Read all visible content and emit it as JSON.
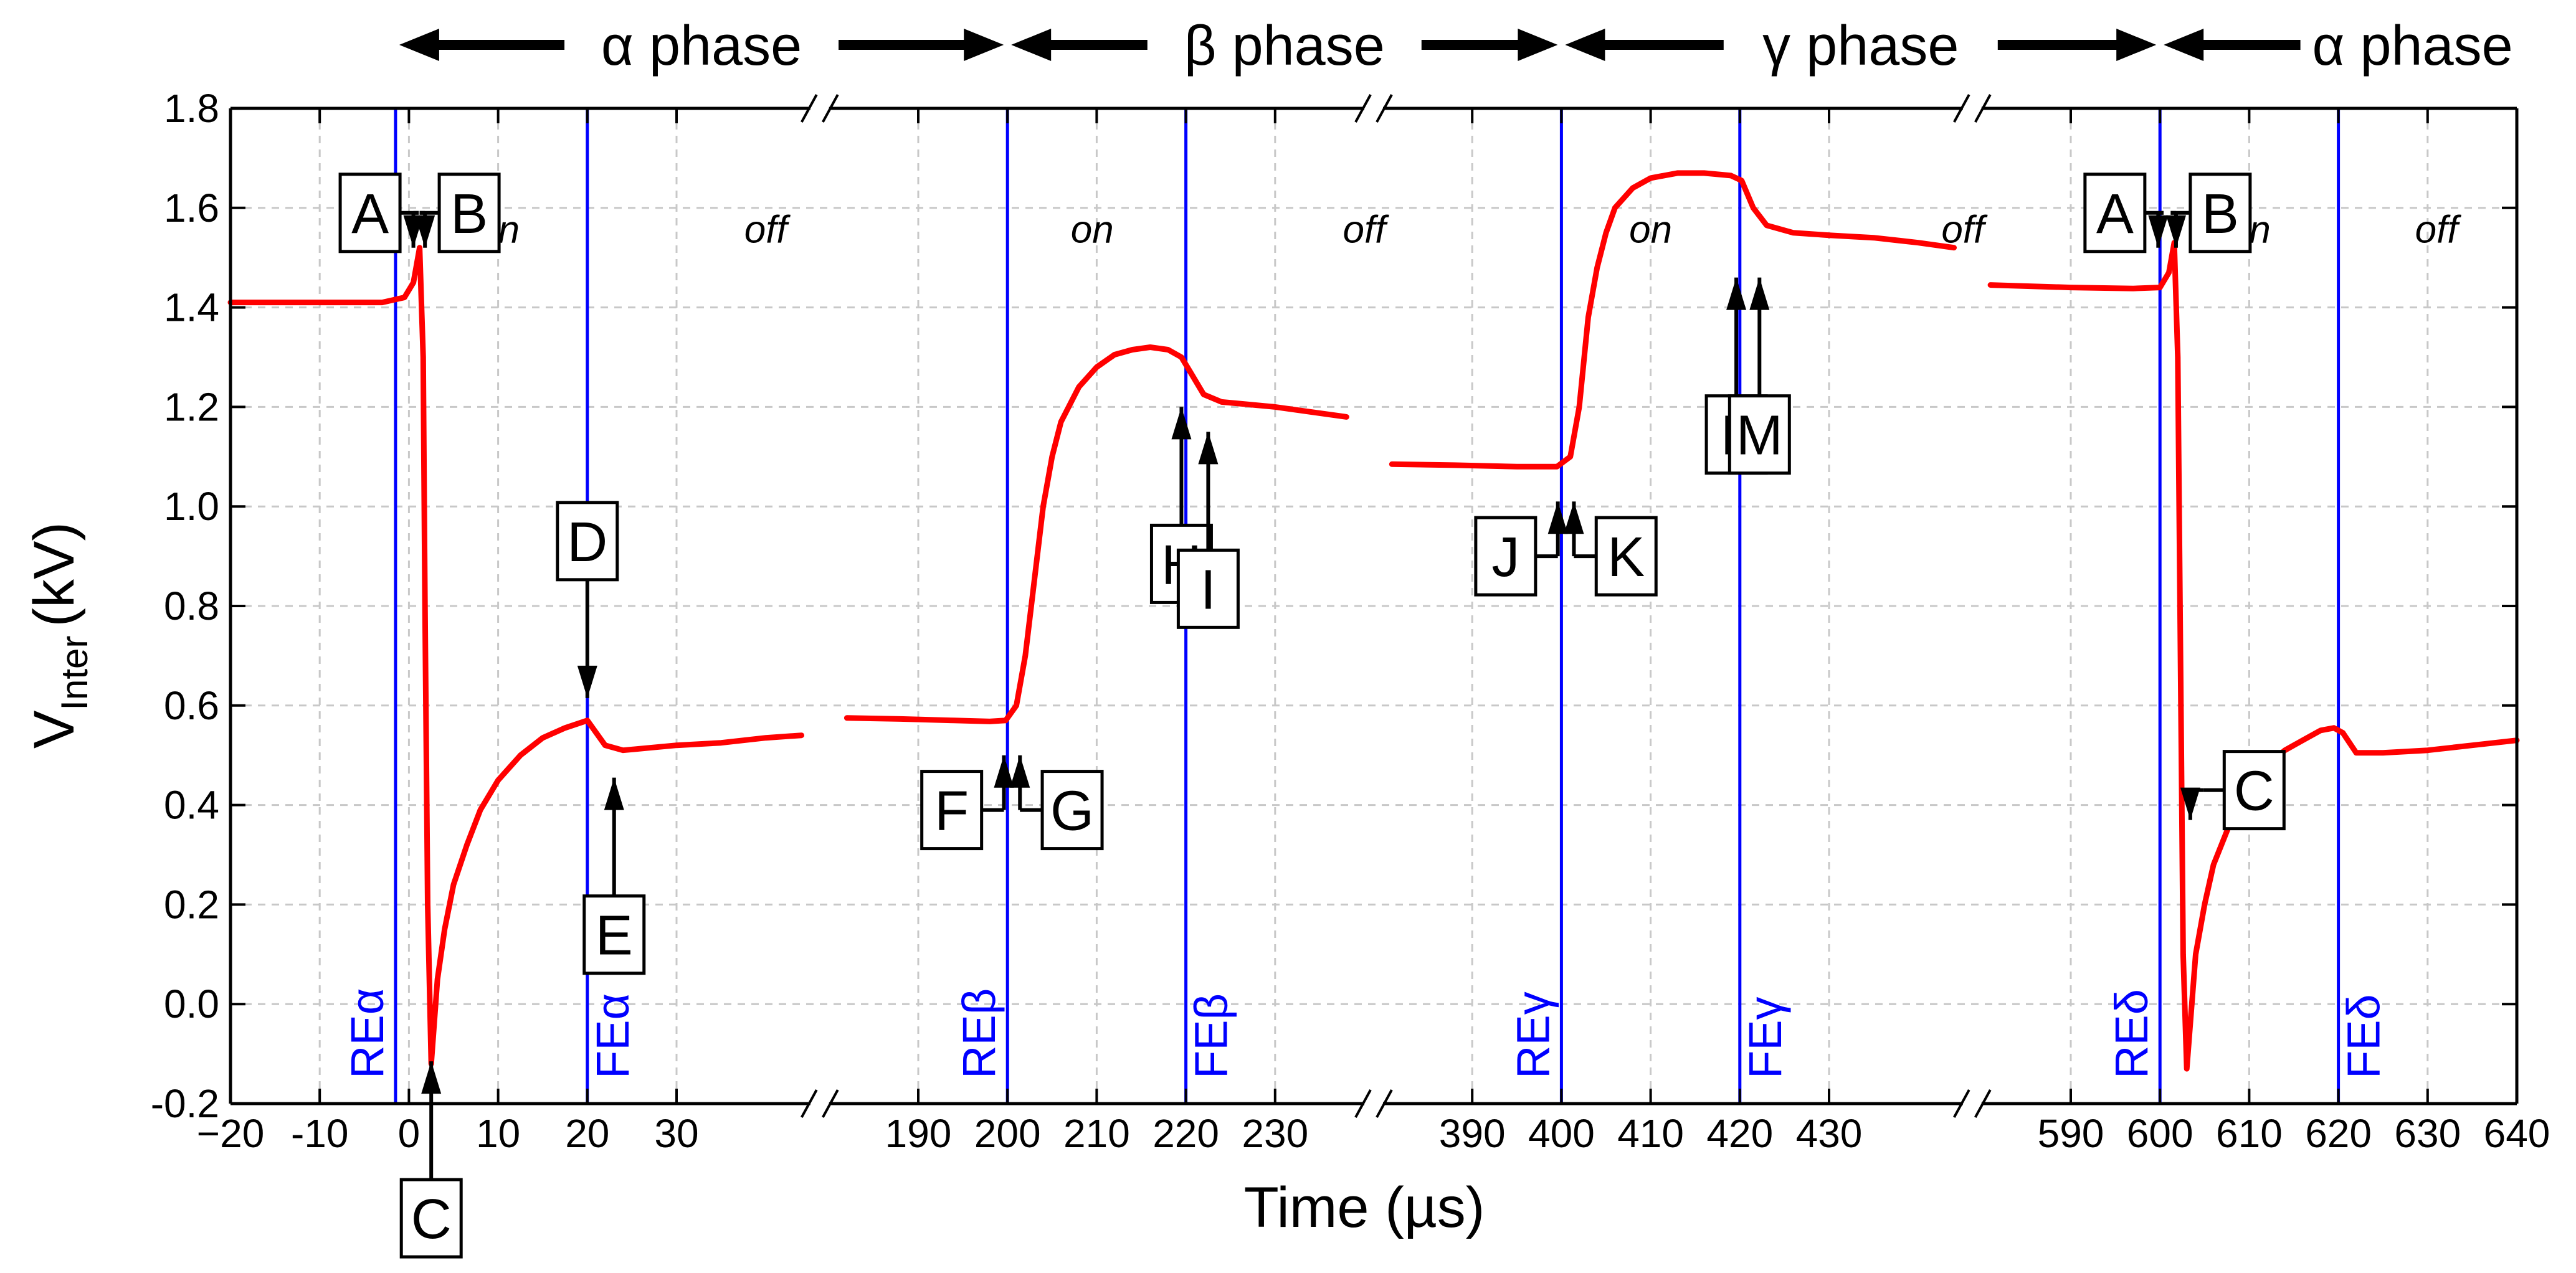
{
  "chart_data": {
    "type": "line",
    "title": "",
    "ylabel": {
      "main": "V",
      "sub": "Inter",
      "unit": "(kV)"
    },
    "xlabel": "Time (µs)",
    "ylim": [
      -0.2,
      1.8
    ],
    "y_ticks": [
      "1.8",
      "1.6",
      "1.4",
      "1.2",
      "1.0",
      "0.8",
      "0.6",
      "0.4",
      "0.2",
      "0.0",
      "-0.2"
    ],
    "y_tick_values": [
      1.8,
      1.6,
      1.4,
      1.2,
      1.0,
      0.8,
      0.6,
      0.4,
      0.2,
      0.0,
      -0.2
    ],
    "segments": [
      {
        "xlim": [
          -20,
          45
        ],
        "ticks": [
          -20,
          -10,
          0,
          10,
          20,
          30
        ],
        "tick_labels": [
          "−20",
          "-10",
          "0",
          "10",
          "20",
          "30"
        ]
      },
      {
        "xlim": [
          180,
          240
        ],
        "ticks": [
          190,
          200,
          210,
          220,
          230
        ],
        "tick_labels": [
          "190",
          "200",
          "210",
          "220",
          "230"
        ]
      },
      {
        "xlim": [
          380,
          445
        ],
        "ticks": [
          390,
          400,
          410,
          420,
          430
        ],
        "tick_labels": [
          "390",
          "400",
          "410",
          "420",
          "430"
        ]
      },
      {
        "xlim": [
          580,
          640
        ],
        "ticks": [
          590,
          600,
          610,
          620,
          630,
          640
        ],
        "tick_labels": [
          "590",
          "600",
          "610",
          "620",
          "630",
          "640"
        ]
      }
    ],
    "phases": [
      {
        "label": "α phase",
        "from": -1.5,
        "to": 200
      },
      {
        "label": "β phase",
        "from": 200,
        "to": 400
      },
      {
        "label": "γ phase",
        "from": 400,
        "to": 600
      },
      {
        "label": "α phase",
        "from": 600,
        "to": 640
      }
    ],
    "states": [
      {
        "label": "on",
        "x": 10
      },
      {
        "label": "off",
        "x": 40
      },
      {
        "label": "on",
        "x": 209.5
      },
      {
        "label": "off",
        "x": 240
      },
      {
        "label": "on",
        "x": 410
      },
      {
        "label": "off",
        "x": 445
      },
      {
        "label": "on",
        "x": 610
      },
      {
        "label": "off",
        "x": 631
      }
    ],
    "edges": [
      {
        "label": "REα",
        "x": -1.5,
        "side": "left"
      },
      {
        "label": "FEα",
        "x": 20,
        "side": "right"
      },
      {
        "label": "REβ",
        "x": 200,
        "side": "left"
      },
      {
        "label": "FEβ",
        "x": 220,
        "side": "right"
      },
      {
        "label": "REγ",
        "x": 400,
        "side": "left"
      },
      {
        "label": "FEγ",
        "x": 420,
        "side": "right"
      },
      {
        "label": "REδ",
        "x": 600,
        "side": "left"
      },
      {
        "label": "FEδ",
        "x": 620,
        "side": "right"
      }
    ],
    "series": [
      {
        "name": "V_Inter",
        "color": "#ff0000",
        "segments": [
          {
            "x": [
              -20,
              -3,
              -0.5,
              0.5,
              1.2,
              1.6,
              1.8,
              2.1,
              2.5,
              3.2,
              4,
              5,
              6.5,
              8,
              10,
              12.5,
              15,
              17.5,
              20,
              21,
              22,
              24,
              27,
              30,
              35,
              40,
              44
            ],
            "y": [
              1.41,
              1.41,
              1.42,
              1.45,
              1.52,
              1.3,
              0.8,
              0.2,
              -0.12,
              0.05,
              0.15,
              0.24,
              0.32,
              0.39,
              0.45,
              0.5,
              0.535,
              0.555,
              0.57,
              0.545,
              0.52,
              0.51,
              0.515,
              0.52,
              0.525,
              0.535,
              0.54
            ]
          },
          {
            "x": [
              182,
              188,
              194,
              198,
              199.8,
              201,
              202,
              203,
              204,
              205,
              206,
              208,
              210,
              212,
              214,
              216,
              218,
              219.5,
              220.5,
              222,
              224,
              227,
              230,
              234,
              238
            ],
            "y": [
              0.575,
              0.573,
              0.57,
              0.568,
              0.57,
              0.6,
              0.7,
              0.85,
              1.0,
              1.1,
              1.17,
              1.24,
              1.28,
              1.305,
              1.315,
              1.32,
              1.315,
              1.3,
              1.27,
              1.225,
              1.21,
              1.205,
              1.2,
              1.19,
              1.18
            ]
          },
          {
            "x": [
              381,
              388,
              395,
              399.5,
              401,
              402,
              403,
              404,
              405,
              406,
              408,
              410,
              413,
              416,
              419,
              420.2,
              421.5,
              423,
              426,
              430,
              435,
              440,
              444
            ],
            "y": [
              1.085,
              1.083,
              1.08,
              1.08,
              1.1,
              1.2,
              1.38,
              1.48,
              1.55,
              1.6,
              1.64,
              1.66,
              1.67,
              1.67,
              1.665,
              1.655,
              1.6,
              1.565,
              1.55,
              1.545,
              1.54,
              1.53,
              1.52
            ]
          },
          {
            "x": [
              581,
              590,
              597,
              600,
              601,
              601.6,
              602,
              602.3,
              602.6,
              603,
              604,
              605,
              606,
              608,
              610,
              612,
              614,
              616,
              618,
              619.5,
              620.5,
              622,
              625,
              630,
              635,
              640
            ],
            "y": [
              1.445,
              1.44,
              1.438,
              1.44,
              1.47,
              1.53,
              1.3,
              0.7,
              0.1,
              -0.13,
              0.1,
              0.2,
              0.28,
              0.37,
              0.44,
              0.48,
              0.51,
              0.53,
              0.55,
              0.555,
              0.545,
              0.505,
              0.505,
              0.51,
              0.52,
              0.53
            ]
          }
        ]
      }
    ],
    "markers": [
      {
        "label": "A",
        "x": 0.5,
        "y": 1.52,
        "kind": "elbow-down",
        "dx": 0.6,
        "box_dx": -1.5,
        "box_dy": -0.07
      },
      {
        "label": "B",
        "x": 1.8,
        "y": 1.52,
        "kind": "elbow-down",
        "dx": -0.6,
        "box_dx": 1.6,
        "box_dy": -0.07
      },
      {
        "label": "C",
        "x": 2.5,
        "y": -0.115,
        "kind": "up-box-below"
      },
      {
        "label": "D",
        "x": 20,
        "y": 0.615,
        "kind": "down-box-above"
      },
      {
        "label": "E",
        "x": 23,
        "y": 0.455,
        "kind": "up-box-below"
      },
      {
        "label": "F",
        "x": 199.6,
        "y": 0.5,
        "kind": "elbow-up",
        "dx": -0.6,
        "box_dx": -2.5,
        "box_dy": 0.04
      },
      {
        "label": "G",
        "x": 201.4,
        "y": 0.5,
        "kind": "elbow-up",
        "dx": 0.6,
        "box_dx": 2.5,
        "box_dy": 0.04
      },
      {
        "label": "H",
        "x": 219.5,
        "y": 1.2,
        "kind": "up-box-below"
      },
      {
        "label": "I",
        "x": 222.5,
        "y": 1.15,
        "kind": "up-box-below"
      },
      {
        "label": "J",
        "x": 399.6,
        "y": 1.01,
        "kind": "elbow-up",
        "dx": -0.6,
        "box_dx": -2.5,
        "box_dy": 0.04
      },
      {
        "label": "K",
        "x": 401.4,
        "y": 1.01,
        "kind": "elbow-up",
        "dx": 0.6,
        "box_dx": 2.5,
        "box_dy": 0.04
      },
      {
        "label": "L",
        "x": 419.6,
        "y": 1.46,
        "kind": "up-box-below"
      },
      {
        "label": "M",
        "x": 422.2,
        "y": 1.46,
        "kind": "up-box-below"
      },
      {
        "label": "A",
        "x": 599.8,
        "y": 1.52,
        "kind": "elbow-down",
        "dx": 0.6,
        "box_dx": -1.5,
        "box_dy": -0.07
      },
      {
        "label": "B",
        "x": 601.8,
        "y": 1.52,
        "kind": "elbow-down",
        "dx": -0.6,
        "box_dx": 1.6,
        "box_dy": -0.07
      },
      {
        "label": "C",
        "x": 603.4,
        "y": 0.37,
        "kind": "elbow-down",
        "dx": 1.5,
        "box_dx": 3.8,
        "box_dy": -0.06
      }
    ]
  }
}
